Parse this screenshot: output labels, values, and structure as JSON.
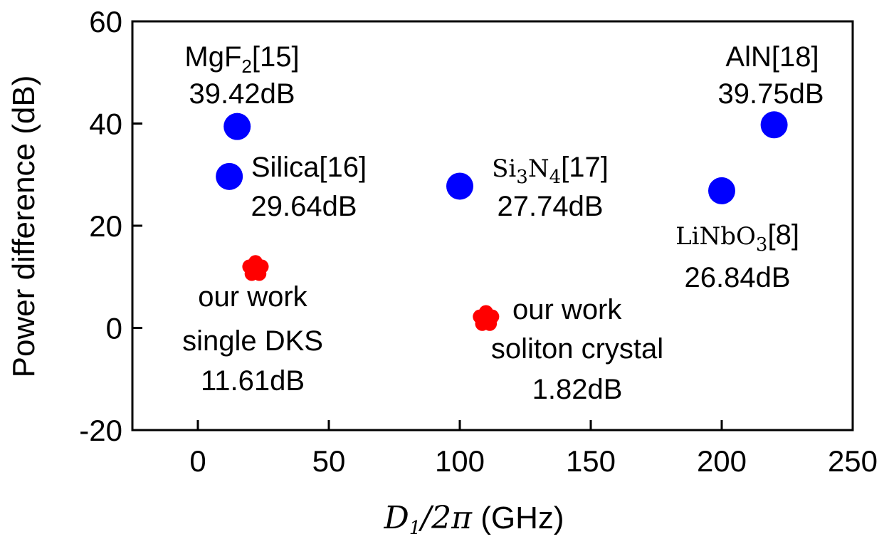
{
  "chart_data": {
    "type": "scatter",
    "title": "",
    "xlabel": {
      "var": "D",
      "var_sub": "1",
      "rest": "/2π",
      "unit": " (GHz)"
    },
    "ylabel": "Power difference (dB)",
    "xlim": [
      -25,
      250
    ],
    "ylim": [
      -20,
      60
    ],
    "xticks": [
      0,
      50,
      100,
      150,
      200,
      250
    ],
    "yticks": [
      -20,
      0,
      20,
      40,
      60
    ],
    "xtick_labels": [
      "0",
      "50",
      "100",
      "150",
      "200",
      "250"
    ],
    "ytick_labels": [
      "-20",
      "0",
      "20",
      "40",
      "60"
    ],
    "grid": false,
    "series": [
      {
        "marker": "circle",
        "color": "#0000ff",
        "points": [
          {
            "x": 15,
            "y": 39.42,
            "label_parts": [
              {
                "t": "MgF"
              },
              {
                "t": "2",
                "sub": true
              },
              {
                "t": "[15]"
              }
            ],
            "value_label": "39.42dB"
          },
          {
            "x": 12,
            "y": 29.64,
            "label_parts": [
              {
                "t": "Silica[16]"
              }
            ],
            "value_label": "29.64dB"
          },
          {
            "x": 100,
            "y": 27.74,
            "label_parts": [
              {
                "t": "Si",
                "serif": true
              },
              {
                "t": "3",
                "serif": true,
                "sub": true
              },
              {
                "t": "N",
                "serif": true
              },
              {
                "t": "4",
                "serif": true,
                "sub": true
              },
              {
                "t": "[17]"
              }
            ],
            "value_label": "27.74dB"
          },
          {
            "x": 200,
            "y": 26.84,
            "label_parts": [
              {
                "t": "LiNbO",
                "serif": true
              },
              {
                "t": "3",
                "serif": true,
                "sub": true
              },
              {
                "t": "[8]"
              }
            ],
            "value_label": "26.84dB"
          },
          {
            "x": 220,
            "y": 39.75,
            "label_parts": [
              {
                "t": "AlN[18]"
              }
            ],
            "value_label": "39.75dB"
          }
        ]
      },
      {
        "marker": "flower",
        "color": "#ff0000",
        "points": [
          {
            "x": 22,
            "y": 11.61,
            "text_lines": [
              "our work",
              "single DKS",
              "11.61dB"
            ]
          },
          {
            "x": 110,
            "y": 1.82,
            "text_lines": [
              "our work",
              "soliton crystal",
              "1.82dB"
            ]
          }
        ]
      }
    ]
  }
}
